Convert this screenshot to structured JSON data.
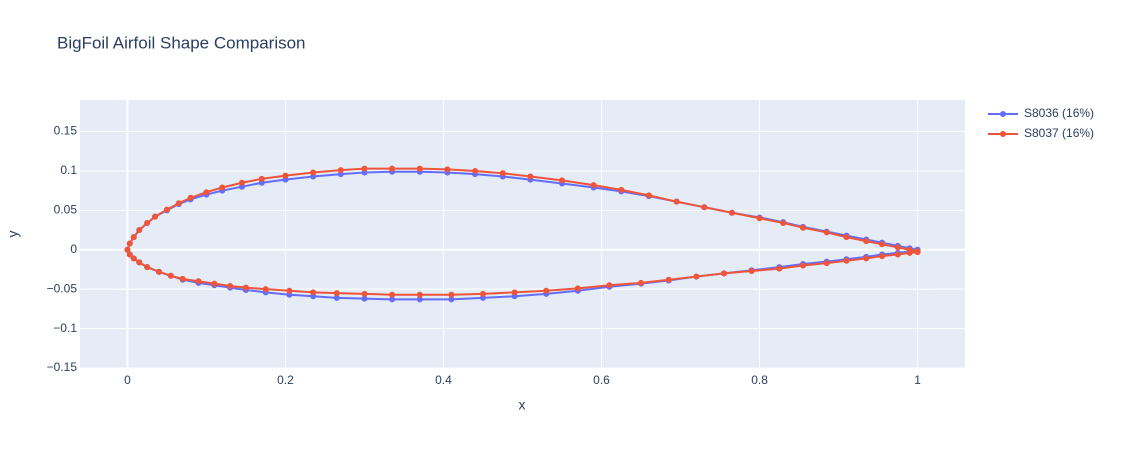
{
  "chart_data": {
    "type": "line",
    "title": "BigFoil Airfoil Shape Comparison",
    "x_label": "x",
    "y_label": "y",
    "x": [
      1,
      0.99,
      0.975,
      0.955,
      0.935,
      0.91,
      0.885,
      0.855,
      0.83,
      0.8,
      0.765,
      0.73,
      0.695,
      0.66,
      0.625,
      0.59,
      0.55,
      0.51,
      0.475,
      0.44,
      0.405,
      0.37,
      0.335,
      0.3,
      0.27,
      0.235,
      0.2,
      0.17,
      0.145,
      0.12,
      0.1,
      0.08,
      0.065,
      0.05,
      0.035,
      0.025,
      0.015,
      0.008,
      0.003,
      0,
      0.003,
      0.008,
      0.015,
      0.025,
      0.04,
      0.055,
      0.07,
      0.09,
      0.11,
      0.13,
      0.15,
      0.175,
      0.205,
      0.235,
      0.265,
      0.3,
      0.335,
      0.37,
      0.41,
      0.45,
      0.49,
      0.53,
      0.57,
      0.61,
      0.65,
      0.685,
      0.72,
      0.755,
      0.79,
      0.825,
      0.855,
      0.885,
      0.91,
      0.935,
      0.955,
      0.975,
      0.99,
      1
    ],
    "series": [
      {
        "name": "S8036 (16%)",
        "color": "#636efa",
        "values": [
          0,
          0.002,
          0.005,
          0.009,
          0.013,
          0.018,
          0.023,
          0.029,
          0.035,
          0.041,
          0.047,
          0.054,
          0.061,
          0.068,
          0.074,
          0.079,
          0.084,
          0.089,
          0.093,
          0.096,
          0.098,
          0.099,
          0.099,
          0.098,
          0.096,
          0.093,
          0.089,
          0.085,
          0.08,
          0.075,
          0.07,
          0.064,
          0.058,
          0.05,
          0.042,
          0.034,
          0.025,
          0.016,
          0.008,
          0,
          -0.006,
          -0.011,
          -0.016,
          -0.022,
          -0.028,
          -0.033,
          -0.038,
          -0.042,
          -0.045,
          -0.048,
          -0.051,
          -0.054,
          -0.057,
          -0.059,
          -0.061,
          -0.062,
          -0.063,
          -0.063,
          -0.063,
          -0.061,
          -0.059,
          -0.056,
          -0.052,
          -0.047,
          -0.043,
          -0.039,
          -0.034,
          -0.03,
          -0.026,
          -0.022,
          -0.018,
          -0.015,
          -0.012,
          -0.009,
          -0.006,
          -0.004,
          -0.002,
          0
        ]
      },
      {
        "name": "S8037 (16%)",
        "color": "#ef553b",
        "values": [
          -0.002,
          0,
          0.003,
          0.007,
          0.011,
          0.016,
          0.022,
          0.028,
          0.034,
          0.04,
          0.047,
          0.054,
          0.061,
          0.069,
          0.076,
          0.082,
          0.088,
          0.093,
          0.097,
          0.1,
          0.102,
          0.103,
          0.103,
          0.103,
          0.101,
          0.098,
          0.094,
          0.09,
          0.085,
          0.079,
          0.073,
          0.066,
          0.059,
          0.051,
          0.042,
          0.034,
          0.025,
          0.016,
          0.008,
          0,
          -0.006,
          -0.011,
          -0.016,
          -0.022,
          -0.028,
          -0.033,
          -0.037,
          -0.04,
          -0.043,
          -0.046,
          -0.048,
          -0.05,
          -0.052,
          -0.054,
          -0.055,
          -0.056,
          -0.057,
          -0.057,
          -0.057,
          -0.056,
          -0.054,
          -0.052,
          -0.049,
          -0.045,
          -0.042,
          -0.038,
          -0.034,
          -0.03,
          -0.027,
          -0.024,
          -0.02,
          -0.017,
          -0.014,
          -0.011,
          -0.008,
          -0.006,
          -0.004,
          -0.003
        ]
      }
    ],
    "xlim": [
      -0.06,
      1.06
    ],
    "xticks": [
      0,
      0.2,
      0.4,
      0.6,
      0.8,
      1
    ],
    "ylim": [
      -0.15,
      0.19
    ],
    "yticks": [
      {
        "value": -0.15,
        "label": "−0.15"
      },
      {
        "value": -0.1,
        "label": "−0.1"
      },
      {
        "value": -0.05,
        "label": "−0.05"
      },
      0,
      0.05,
      0.1,
      0.15
    ],
    "grid": true,
    "legend": "outside-right"
  }
}
